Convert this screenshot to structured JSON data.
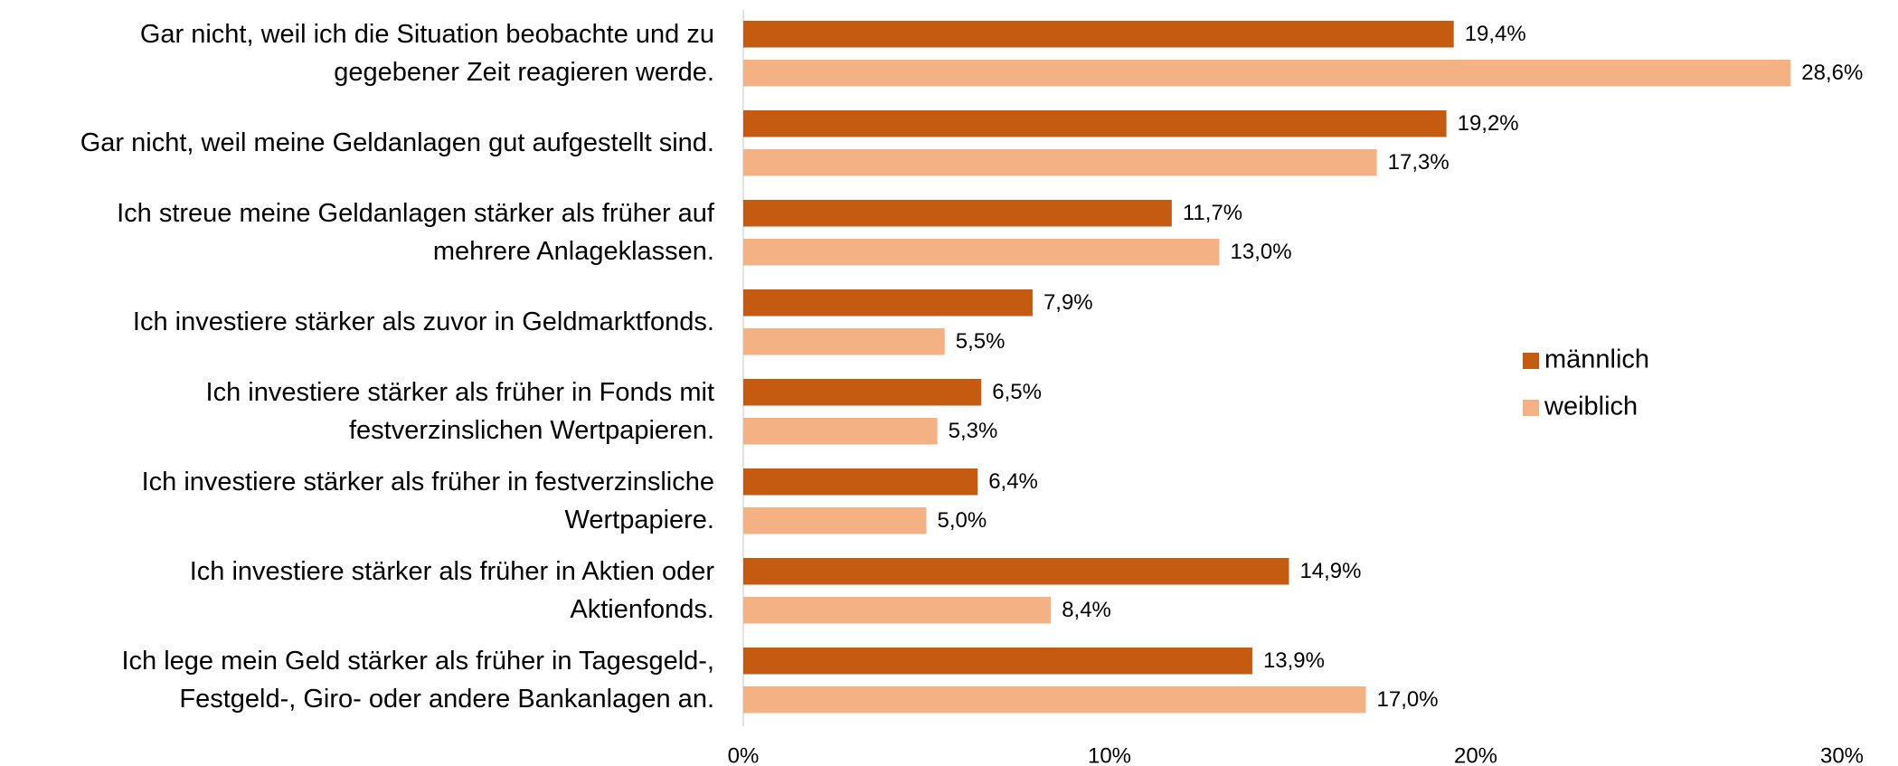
{
  "chart_data": {
    "type": "barh",
    "categories": [
      "Gar nicht, weil ich die Situation beobachte und zu\ngegebener Zeit reagieren werde.",
      "Gar nicht, weil meine Geldanlagen gut aufgestellt sind.",
      "Ich streue meine Geldanlagen stärker als früher auf\nmehrere Anlageklassen.",
      "Ich investiere stärker als zuvor in Geldmarktfonds.",
      "Ich investiere stärker als früher in Fonds mit\nfestverzinslichen Wertpapieren.",
      "Ich investiere stärker als früher in festverzinsliche\nWertpapiere.",
      "Ich investiere stärker als früher in Aktien oder\nAktienfonds.",
      "Ich lege mein Geld stärker als früher in Tagesgeld-,\nFestgeld-, Giro- oder andere Bankanlagen an."
    ],
    "series": [
      {
        "name": "männlich",
        "color": "#c55a11",
        "values": [
          19.4,
          19.2,
          11.7,
          7.9,
          6.5,
          6.4,
          14.9,
          13.9
        ],
        "value_labels": [
          "19,4%",
          "19,2%",
          "11,7%",
          "7,9%",
          "6,5%",
          "6,4%",
          "14,9%",
          "13,9%"
        ]
      },
      {
        "name": "weiblich",
        "color": "#f4b183",
        "values": [
          28.6,
          17.3,
          13.0,
          5.5,
          5.3,
          5.0,
          8.4,
          17.0
        ],
        "value_labels": [
          "28,6%",
          "17,3%",
          "13,0%",
          "5,5%",
          "5,3%",
          "5,0%",
          "8,4%",
          "17,0%"
        ]
      }
    ],
    "xlim": [
      0,
      30
    ],
    "xticks": [
      {
        "value": 0,
        "label": "0%"
      },
      {
        "value": 10,
        "label": "10%"
      },
      {
        "value": 20,
        "label": "20%"
      },
      {
        "value": 30,
        "label": "30%"
      }
    ],
    "legend": "right"
  }
}
